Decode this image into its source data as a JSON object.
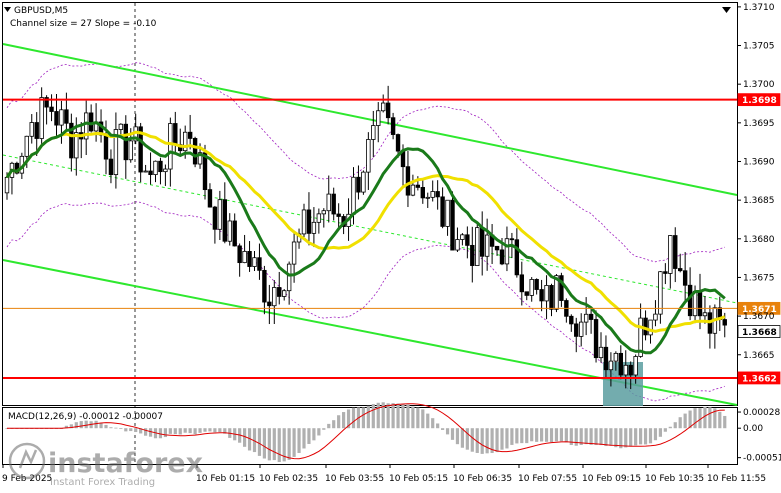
{
  "chart_data": {
    "type": "candlestick",
    "symbol_header": "GBPUSD,M5",
    "indicator_header": "Channel size = 27 Slope = -0.10",
    "macd_header": "MACD(12,26,9) -0.00012 -0.00007",
    "price_axis": {
      "range": [
        1.36585,
        1.37105
      ],
      "ticks": [
        "1.3710",
        "1.3705",
        "1.3700",
        "1.3695",
        "1.3690",
        "1.3685",
        "1.3680",
        "1.3675",
        "1.3670",
        "1.3665"
      ]
    },
    "macd_axis": {
      "range": [
        -0.00062,
        0.00035
      ],
      "ticks": [
        "0.00028",
        "0.00",
        "-0.00051"
      ]
    },
    "time_labels": [
      "9 Feb 2025",
      "10 Feb 01:15",
      "10 Feb 02:35",
      "10 Feb 03:55",
      "10 Feb 05:15",
      "10 Feb 06:35",
      "10 Feb 07:55",
      "10 Feb 09:15",
      "10 Feb 10:35",
      "10 Feb 11:55"
    ],
    "price_levels": [
      {
        "label": "1.3698",
        "value": 1.3698,
        "color": "#ff0000",
        "kind": "resistance"
      },
      {
        "label": "1.3662",
        "value": 1.3662,
        "color": "#ff0000",
        "kind": "support"
      },
      {
        "label": "1.3671",
        "value": 1.3671,
        "color": "#e8820c",
        "kind": "level"
      },
      {
        "label": "1.3668",
        "value": 1.3668,
        "color": "#ffffff",
        "kind": "current"
      }
    ],
    "watermark": "instaforex",
    "watermark_sub": "Instant Forex Trading",
    "colors": {
      "candle": "#000000",
      "ma_fast": "#1a7a1a",
      "ma_slow": "#f0e000",
      "channel": "#2ee82e",
      "envelope": "#a020c0",
      "highlight": "#5a9ea0",
      "macd_hist": "#b0b0b0",
      "macd_signal": "#e00000"
    }
  }
}
